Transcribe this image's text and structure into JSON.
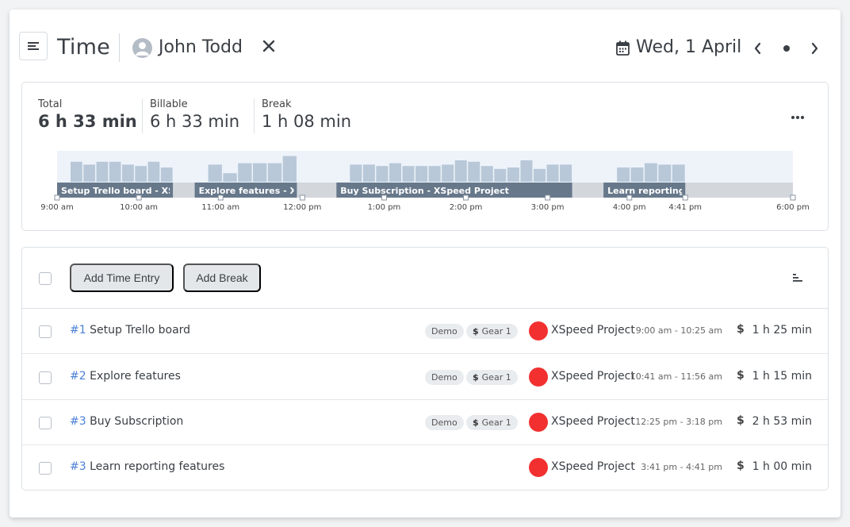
{
  "header": {
    "title": "Time",
    "user_name": "John Todd",
    "date": "Wed, 1 April"
  },
  "summary": {
    "total_label": "Total",
    "total_value": "6 h 33 min",
    "billable_label": "Billable",
    "billable_value": "6 h 33 min",
    "break_label": "Break",
    "break_value": "1 h 08 min"
  },
  "timeline": {
    "day_start_hour": 9,
    "day_end_hour": 18,
    "ticks": [
      "9:00 am",
      "10:00 am",
      "11:00 am",
      "12:00 pm",
      "1:00 pm",
      "2:00 pm",
      "3:00 pm",
      "4:00 pm",
      "4:41 pm",
      "6:00 pm"
    ],
    "tick_hours": [
      9,
      10,
      11,
      12,
      13,
      14,
      15,
      16,
      16.683,
      18
    ],
    "entries": [
      {
        "label": "Setup Trello board - XSpeed Project",
        "start": 9.0,
        "end": 10.4167,
        "activity": [
          0.7,
          0.6,
          0.7,
          0.7,
          0.6,
          0.55,
          0.7,
          0.5
        ]
      },
      {
        "label": "Explore features - XSpeed Project",
        "start": 10.6833,
        "end": 11.9333,
        "activity": [
          0.6,
          0.3,
          0.65,
          0.65,
          0.65,
          0.9
        ]
      },
      {
        "label": "Buy Subscription - XSpeed Project",
        "start": 12.4167,
        "end": 15.3,
        "activity": [
          0.6,
          0.6,
          0.55,
          0.65,
          0.55,
          0.55,
          0.55,
          0.6,
          0.75,
          0.7,
          0.55,
          0.45,
          0.5,
          0.75,
          0.45,
          0.6,
          0.6
        ]
      },
      {
        "label": "Learn reporting features - XSpeed Project",
        "start": 15.6833,
        "end": 16.6833,
        "activity": [
          0.5,
          0.5,
          0.65,
          0.6,
          0.6
        ]
      }
    ]
  },
  "list": {
    "add_time_entry_label": "Add Time Entry",
    "add_break_label": "Add Break",
    "rows": [
      {
        "num": "#1",
        "title": "Setup Trello board",
        "tags": [
          "Demo",
          "Gear 1"
        ],
        "project": "XSpeed Project",
        "project_color": "#f23030",
        "range": "9:00 am - 10:25 am",
        "billable_symbol": "$",
        "duration": "1 h 25 min"
      },
      {
        "num": "#2",
        "title": "Explore features",
        "tags": [
          "Demo",
          "Gear 1"
        ],
        "project": "XSpeed Project",
        "project_color": "#f23030",
        "range": "10:41 am - 11:56 am",
        "billable_symbol": "$",
        "duration": "1 h 15 min"
      },
      {
        "num": "#3",
        "title": "Buy Subscription",
        "tags": [
          "Demo",
          "Gear 1"
        ],
        "project": "XSpeed Project",
        "project_color": "#f23030",
        "range": "12:25 pm - 3:18 pm",
        "billable_symbol": "$",
        "duration": "2 h 53 min"
      },
      {
        "num": "#3",
        "title": "Learn reporting features",
        "tags": [],
        "project": "XSpeed Project",
        "project_color": "#f23030",
        "range": "3:41 pm - 4:41 pm",
        "billable_symbol": "$",
        "duration": "1 h 00 min"
      }
    ]
  },
  "colors": {
    "accent_link": "#4a7fd6",
    "timeline_bar": "#67788b",
    "timeline_activity": "#b8c8d8",
    "timeline_bg": "#eef3fa",
    "timeline_track": "#d3d7dc",
    "project_dot": "#f23030"
  },
  "icons": [
    "menu-icon",
    "user-avatar-icon",
    "close-icon",
    "calendar-icon",
    "chevron-left-icon",
    "dot-icon",
    "chevron-right-icon",
    "more-icon",
    "sort-icon",
    "dollar-icon"
  ]
}
